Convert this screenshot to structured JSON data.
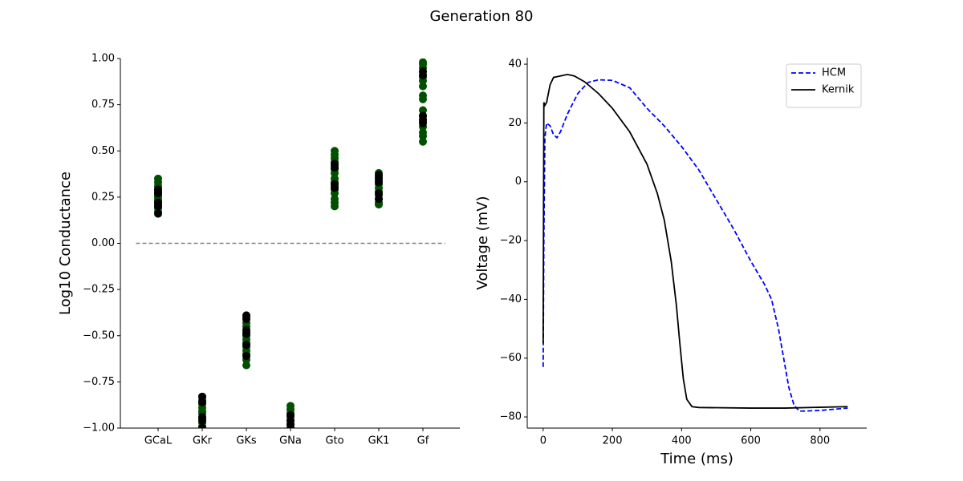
{
  "title": "Generation 80",
  "chart_data": [
    {
      "type": "strip",
      "ylabel": "Log10 Conductance",
      "categories": [
        "GCaL",
        "GKr",
        "GKs",
        "GNa",
        "Gto",
        "GK1",
        "Gf"
      ],
      "series": [
        {
          "color": "#005000",
          "values": [
            [
              0.35,
              0.33,
              0.31,
              0.3,
              0.29,
              0.28,
              0.27,
              0.26,
              0.25,
              0.24,
              0.23,
              0.22,
              0.21,
              0.2,
              0.19,
              0.17
            ],
            [
              -0.83,
              -0.85,
              -0.87,
              -0.89,
              -0.91,
              -0.92,
              -0.94,
              -0.95,
              -0.97,
              -0.99
            ],
            [
              -0.4,
              -0.43,
              -0.45,
              -0.48,
              -0.5,
              -0.52,
              -0.54,
              -0.56,
              -0.58,
              -0.6,
              -0.63,
              -0.66
            ],
            [
              -0.88,
              -0.9,
              -0.92,
              -0.94,
              -0.96,
              -0.98,
              -1.0
            ],
            [
              0.5,
              0.48,
              0.46,
              0.44,
              0.42,
              0.4,
              0.38,
              0.35,
              0.33,
              0.31,
              0.29,
              0.27,
              0.24,
              0.22,
              0.2
            ],
            [
              0.38,
              0.36,
              0.34,
              0.32,
              0.3,
              0.28,
              0.26,
              0.24,
              0.22,
              0.21
            ],
            [
              0.98,
              0.97,
              0.95,
              0.93,
              0.9,
              0.88,
              0.85,
              0.8,
              0.78,
              0.72,
              0.69,
              0.66,
              0.63,
              0.6,
              0.58,
              0.55
            ]
          ]
        },
        {
          "color": "#000000",
          "values": [
            [
              0.29,
              0.27,
              0.22,
              0.2,
              0.16
            ],
            [
              -0.83,
              -0.86,
              -0.94,
              -0.96,
              -1.0
            ],
            [
              -0.39,
              -0.41,
              -0.47,
              -0.49,
              -0.55,
              -0.61
            ],
            [
              -0.93,
              -0.96,
              -0.98,
              -1.0
            ],
            [
              0.43,
              0.41,
              0.32,
              0.3
            ],
            [
              0.37,
              0.35,
              0.33,
              0.27,
              0.24
            ],
            [
              0.93,
              0.91,
              0.69,
              0.67,
              0.65
            ]
          ]
        }
      ],
      "ylim": [
        -1,
        1
      ],
      "yticks": [
        {
          "value": -1,
          "label": "−1.00"
        },
        {
          "value": -0.75,
          "label": "−0.75"
        },
        {
          "value": -0.5,
          "label": "−0.50"
        },
        {
          "value": -0.25,
          "label": "−0.25"
        },
        {
          "value": 0,
          "label": "0.00"
        },
        {
          "value": 0.25,
          "label": "0.25"
        },
        {
          "value": 0.5,
          "label": "0.50"
        },
        {
          "value": 0.75,
          "label": "0.75"
        },
        {
          "value": 1,
          "label": "1.00"
        }
      ],
      "hline": {
        "value": 0,
        "color": "#808080",
        "dashed": true
      }
    },
    {
      "type": "line",
      "xlabel": "Time (ms)",
      "ylabel": "Voltage (mV)",
      "xlim": [
        -46,
        935
      ],
      "ylim": [
        -83.8,
        42.2
      ],
      "xticks": [
        0,
        200,
        400,
        600,
        800
      ],
      "yticks": [
        {
          "value": -80,
          "label": "−80"
        },
        {
          "value": -60,
          "label": "−60"
        },
        {
          "value": -40,
          "label": "−40"
        },
        {
          "value": -20,
          "label": "−20"
        },
        0,
        20,
        40
      ],
      "legend": "upper right",
      "series": [
        {
          "name": "HCM",
          "color": "#0000ff",
          "dashed": true,
          "x": [
            0,
            2,
            5,
            10,
            20,
            30,
            40,
            50,
            70,
            100,
            130,
            160,
            200,
            250,
            300,
            350,
            400,
            450,
            500,
            550,
            600,
            640,
            660,
            680,
            695,
            710,
            725,
            740,
            760,
            800,
            880
          ],
          "values": [
            -63,
            -20,
            15,
            20,
            19,
            16,
            15,
            17,
            23,
            30,
            33.8,
            34.7,
            34.5,
            32,
            25,
            19,
            12,
            4,
            -6,
            -16,
            -27,
            -35,
            -40,
            -50,
            -60,
            -70,
            -76,
            -78,
            -78,
            -77.8,
            -77
          ]
        },
        {
          "name": "Kernik",
          "color": "#000000",
          "dashed": false,
          "x": [
            0,
            2,
            5,
            10,
            20,
            30,
            50,
            70,
            90,
            120,
            160,
            200,
            250,
            300,
            330,
            350,
            370,
            385,
            395,
            405,
            415,
            430,
            450,
            600,
            700,
            880
          ],
          "values": [
            -55,
            27,
            26,
            27,
            33,
            35.5,
            36,
            36.5,
            36,
            34,
            30,
            25,
            17,
            6,
            -4,
            -13,
            -27,
            -42,
            -55,
            -67,
            -74,
            -76.5,
            -76.8,
            -77,
            -77,
            -76.5
          ]
        }
      ]
    }
  ]
}
